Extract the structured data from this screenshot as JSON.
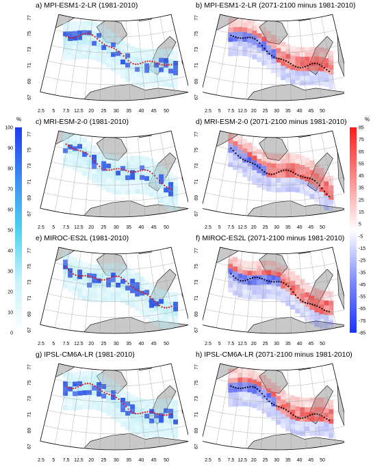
{
  "chart_data": [
    {
      "type": "heatmap",
      "panel": "a",
      "title": "a)  MPI-ESM1-2-LR (1981-2010)",
      "variant": "hist",
      "lat_ticks": [
        "67",
        "69",
        "71",
        "73",
        "75",
        "77"
      ],
      "lon_ticks": [
        "2.5",
        "5",
        "7.5",
        "12.5",
        "20",
        "25",
        "30",
        "35",
        "40",
        "45",
        "50"
      ]
    },
    {
      "type": "heatmap",
      "panel": "b",
      "title": "b)  MPI-ESM1-2-LR (2071-2100 minus 1981-2010)",
      "variant": "diff",
      "lat_ticks": [
        "67",
        "69",
        "71",
        "73",
        "75",
        "77"
      ],
      "lon_ticks": [
        "2.5",
        "5",
        "7.5",
        "12.5",
        "20",
        "25",
        "30",
        "35",
        "40",
        "45",
        "50"
      ]
    },
    {
      "type": "heatmap",
      "panel": "c",
      "title": "c)  MRI-ESM-2-0 (1981-2010)",
      "variant": "hist",
      "lat_ticks": [
        "67",
        "69",
        "71",
        "73",
        "75",
        "77"
      ],
      "lon_ticks": [
        "2.5",
        "5",
        "7.5",
        "12.5",
        "20",
        "25",
        "30",
        "35",
        "40",
        "45",
        "50"
      ]
    },
    {
      "type": "heatmap",
      "panel": "d",
      "title": "d)  MRI-ESM-2-0 (2071-2100 minus 1981-2010)",
      "variant": "diff",
      "lat_ticks": [
        "67",
        "69",
        "71",
        "73",
        "75",
        "77"
      ],
      "lon_ticks": [
        "2.5",
        "5",
        "7.5",
        "12.5",
        "20",
        "25",
        "30",
        "35",
        "40",
        "45",
        "50"
      ]
    },
    {
      "type": "heatmap",
      "panel": "e",
      "title": "e)  MIROC-ES2L (1981-2010)",
      "variant": "hist",
      "lat_ticks": [
        "67",
        "69",
        "71",
        "73",
        "75",
        "77"
      ],
      "lon_ticks": [
        "2.5",
        "5",
        "7.5",
        "12.5",
        "20",
        "25",
        "30",
        "35",
        "40",
        "45",
        "50"
      ]
    },
    {
      "type": "heatmap",
      "panel": "f",
      "title": "f)  MIROC-ES2L (2071-2100 minus 1981-2010)",
      "variant": "diff",
      "lat_ticks": [
        "67",
        "69",
        "71",
        "73",
        "75",
        "77"
      ],
      "lon_ticks": [
        "2.5",
        "5",
        "7.5",
        "12.5",
        "20",
        "25",
        "30",
        "35",
        "40",
        "45",
        "50"
      ]
    },
    {
      "type": "heatmap",
      "panel": "g",
      "title": "g)  IPSL-CM6A-LR (1981-2010)",
      "variant": "hist",
      "lat_ticks": [
        "67",
        "69",
        "71",
        "73",
        "75",
        "77"
      ],
      "lon_ticks": [
        "2.5",
        "5",
        "7.5",
        "12.5",
        "20",
        "25",
        "30",
        "35",
        "40",
        "45",
        "50"
      ]
    },
    {
      "type": "heatmap",
      "panel": "h",
      "title": "h)  IPSL-CM6A-LR (2071-2100 minus 1981-2010)",
      "variant": "diff",
      "lat_ticks": [
        "67",
        "69",
        "71",
        "73",
        "75",
        "77"
      ],
      "lon_ticks": [
        "2.5",
        "5",
        "7.5",
        "12.5",
        "20",
        "25",
        "30",
        "35",
        "40",
        "45",
        "50"
      ]
    }
  ],
  "colorbars": {
    "left": {
      "unit": "%",
      "ticks": [
        "100",
        "90",
        "80",
        "70",
        "60",
        "50",
        "40",
        "30",
        "20",
        "10",
        "0"
      ],
      "colors": [
        "#ffffff",
        "#c8f2fb",
        "#4fd2f2",
        "#3d8cf2",
        "#1f3bf0"
      ]
    },
    "right": {
      "unit": "%",
      "ticks": [
        "85",
        "75",
        "65",
        "55",
        "45",
        "35",
        "25",
        "15",
        "5",
        "-5",
        "-15",
        "-25",
        "-35",
        "-45",
        "-55",
        "-65",
        "-75",
        "-85"
      ],
      "colors": [
        "#1a33ff",
        "#7f8cff",
        "#ffffff",
        "#ff8c8c",
        "#ff1a1a"
      ]
    }
  },
  "colors": {
    "land": "#c8c8c8",
    "hist_cell": "#aeeaf6",
    "hist_strong": "#2f5ae6",
    "pos": "#f04a4a",
    "neg": "#4a5af0",
    "edge_hist": "#e01010",
    "edge_diff": "#000000"
  }
}
